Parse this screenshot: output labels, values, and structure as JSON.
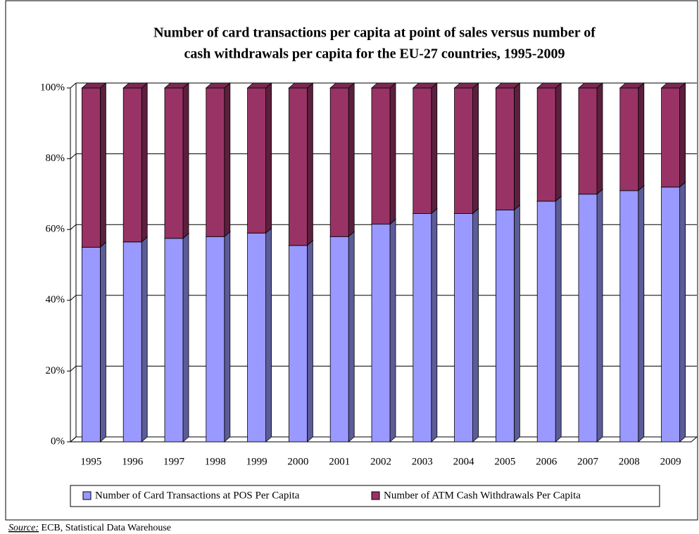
{
  "chart_data": {
    "type": "stacked-bar-100",
    "title_lines": [
      "Number of card transactions per capita at point of sales versus number of",
      "cash withdrawals per capita for the EU-27 countries, 1995-2009"
    ],
    "categories": [
      "1995",
      "1996",
      "1997",
      "1998",
      "1999",
      "2000",
      "2001",
      "2002",
      "2003",
      "2004",
      "2005",
      "2006",
      "2007",
      "2008",
      "2009"
    ],
    "series": [
      {
        "name": "Number of Card Transactions at POS Per Capita",
        "color": "#9999ff",
        "values": [
          55,
          56.5,
          57.5,
          58,
          59,
          55.5,
          58,
          61.5,
          64.5,
          64.5,
          65.5,
          68,
          70,
          71,
          72
        ]
      },
      {
        "name": "Number of ATM Cash Withdrawals Per Capita",
        "color": "#993366",
        "values": [
          45,
          43.5,
          42.5,
          42,
          41,
          44.5,
          42,
          38.5,
          35.5,
          35.5,
          34.5,
          32,
          30,
          29,
          28
        ]
      }
    ],
    "ylim": [
      0,
      100
    ],
    "yticks": [
      {
        "value": 0,
        "label": "0%"
      },
      {
        "value": 20,
        "label": "20%"
      },
      {
        "value": 40,
        "label": "40%"
      },
      {
        "value": 60,
        "label": "60%"
      },
      {
        "value": 80,
        "label": "80%"
      },
      {
        "value": 100,
        "label": "100%"
      }
    ],
    "grid": true,
    "legend": "bottom",
    "source_label": "Source:",
    "source": "ECB, Statistical Data Warehouse"
  }
}
